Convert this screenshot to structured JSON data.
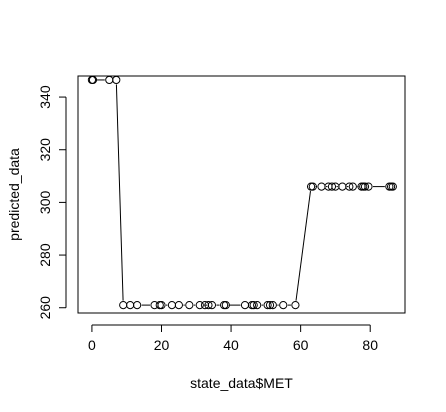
{
  "chart_data": {
    "type": "scatter",
    "xlabel": "state_data$MET",
    "ylabel": "predicted_data",
    "xlim": [
      -4,
      90
    ],
    "ylim": [
      258,
      348
    ],
    "x_ticks": [
      0,
      20,
      40,
      60,
      80
    ],
    "y_ticks": [
      260,
      280,
      300,
      320,
      340
    ],
    "x_tick_labels": [
      "0",
      "20",
      "40",
      "60",
      "80"
    ],
    "y_tick_labels": [
      "260",
      "280",
      "300",
      "320",
      "340"
    ],
    "grid": false,
    "points": [
      {
        "x": 0,
        "y": 346.5
      },
      {
        "x": 0.3,
        "y": 346.5
      },
      {
        "x": 5,
        "y": 346.5
      },
      {
        "x": 7,
        "y": 346.5
      },
      {
        "x": 9,
        "y": 261
      },
      {
        "x": 11,
        "y": 261
      },
      {
        "x": 13,
        "y": 261
      },
      {
        "x": 18,
        "y": 261
      },
      {
        "x": 19.5,
        "y": 261
      },
      {
        "x": 20,
        "y": 261
      },
      {
        "x": 23,
        "y": 261
      },
      {
        "x": 25,
        "y": 261
      },
      {
        "x": 28,
        "y": 261
      },
      {
        "x": 31,
        "y": 261
      },
      {
        "x": 32.5,
        "y": 261
      },
      {
        "x": 33.5,
        "y": 261
      },
      {
        "x": 34.5,
        "y": 261
      },
      {
        "x": 38,
        "y": 261
      },
      {
        "x": 38.5,
        "y": 261
      },
      {
        "x": 44,
        "y": 261
      },
      {
        "x": 46,
        "y": 261
      },
      {
        "x": 46.5,
        "y": 261
      },
      {
        "x": 47.5,
        "y": 261
      },
      {
        "x": 50.5,
        "y": 261
      },
      {
        "x": 51.2,
        "y": 261
      },
      {
        "x": 52,
        "y": 261
      },
      {
        "x": 55,
        "y": 261
      },
      {
        "x": 58.5,
        "y": 261
      },
      {
        "x": 63,
        "y": 306
      },
      {
        "x": 63.5,
        "y": 306
      },
      {
        "x": 66,
        "y": 306
      },
      {
        "x": 68,
        "y": 306
      },
      {
        "x": 69,
        "y": 306
      },
      {
        "x": 70,
        "y": 306
      },
      {
        "x": 72,
        "y": 306
      },
      {
        "x": 74,
        "y": 306
      },
      {
        "x": 75,
        "y": 306
      },
      {
        "x": 77.5,
        "y": 306
      },
      {
        "x": 78,
        "y": 306
      },
      {
        "x": 78.5,
        "y": 306
      },
      {
        "x": 79.5,
        "y": 306
      },
      {
        "x": 85.5,
        "y": 306
      },
      {
        "x": 86,
        "y": 306
      },
      {
        "x": 86.5,
        "y": 306
      }
    ],
    "line": {
      "x": [
        0,
        5,
        7,
        9,
        11,
        13,
        18,
        20,
        23,
        25,
        28,
        31,
        34.5,
        38,
        44,
        46,
        47.5,
        50.5,
        52,
        55,
        58.5,
        63,
        66,
        69,
        72,
        75,
        78,
        79.5,
        85.5,
        86.5
      ],
      "y": [
        346.5,
        346.5,
        346.5,
        261,
        261,
        261,
        261,
        261,
        261,
        261,
        261,
        261,
        261,
        261,
        261,
        261,
        261,
        261,
        261,
        261,
        261,
        306,
        306,
        306,
        306,
        306,
        306,
        306,
        306,
        306
      ]
    }
  }
}
